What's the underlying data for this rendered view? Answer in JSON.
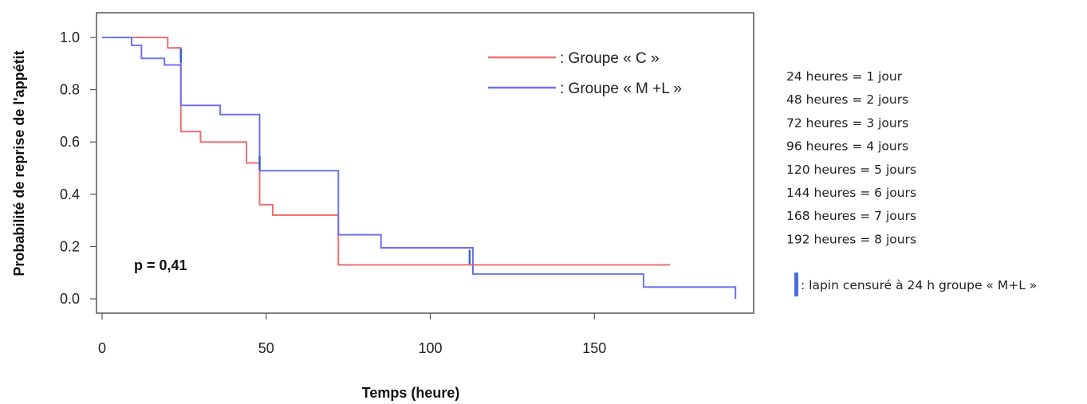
{
  "chart_data": {
    "type": "line",
    "xlabel": "Temps (heure)",
    "ylabel": "Probabilité de reprise de l'appétit",
    "xlim": [
      0,
      200
    ],
    "ylim": [
      0,
      1.0
    ],
    "xticks": [
      0,
      50,
      100,
      150
    ],
    "yticks": [
      0.0,
      0.2,
      0.4,
      0.6,
      0.8,
      1.0
    ],
    "xtick_labels": [
      "0",
      "50",
      "100",
      "150"
    ],
    "ytick_labels": [
      "0.0",
      "0.2",
      "0.4",
      "0.6",
      "0.8",
      "1.0"
    ],
    "grid": false,
    "legend_position": "top-right",
    "annotation": "p = 0,41",
    "series": [
      {
        "name": ": Groupe « C »",
        "color": "#f07070",
        "step_points": [
          [
            0,
            1.0
          ],
          [
            20,
            1.0
          ],
          [
            20,
            0.96
          ],
          [
            24,
            0.96
          ],
          [
            24,
            0.64
          ],
          [
            30,
            0.64
          ],
          [
            30,
            0.6
          ],
          [
            44,
            0.6
          ],
          [
            44,
            0.52
          ],
          [
            48,
            0.52
          ],
          [
            48,
            0.36
          ],
          [
            52,
            0.36
          ],
          [
            52,
            0.32
          ],
          [
            72,
            0.32
          ],
          [
            72,
            0.13
          ],
          [
            173,
            0.13
          ]
        ]
      },
      {
        "name": ": Groupe « M +L »",
        "color": "#7070f0",
        "step_points": [
          [
            0,
            1.0
          ],
          [
            9,
            1.0
          ],
          [
            9,
            0.97
          ],
          [
            12,
            0.97
          ],
          [
            12,
            0.92
          ],
          [
            19,
            0.92
          ],
          [
            19,
            0.895
          ],
          [
            24,
            0.895
          ],
          [
            24,
            0.74
          ],
          [
            36,
            0.74
          ],
          [
            36,
            0.705
          ],
          [
            48,
            0.705
          ],
          [
            48,
            0.49
          ],
          [
            72,
            0.49
          ],
          [
            72,
            0.245
          ],
          [
            85,
            0.245
          ],
          [
            85,
            0.195
          ],
          [
            113,
            0.195
          ],
          [
            113,
            0.095
          ],
          [
            165,
            0.095
          ],
          [
            165,
            0.045
          ],
          [
            193,
            0.045
          ],
          [
            193,
            0.0
          ]
        ],
        "censored": [
          [
            24,
            0.93
          ],
          [
            48,
            0.52
          ],
          [
            112,
            0.16
          ]
        ]
      }
    ]
  },
  "notes": {
    "conversions": [
      "24 heures = 1 jour",
      "48 heures = 2 jours",
      "72 heures = 3 jours",
      "96 heures = 4 jours",
      "120 heures = 5 jours",
      "144 heures = 6 jours",
      "168 heures = 7 jours",
      "192 heures = 8 jours"
    ],
    "censor_legend": ": lapin censuré à 24 h groupe « M+L »",
    "censor_color": "#4a6fd8"
  }
}
